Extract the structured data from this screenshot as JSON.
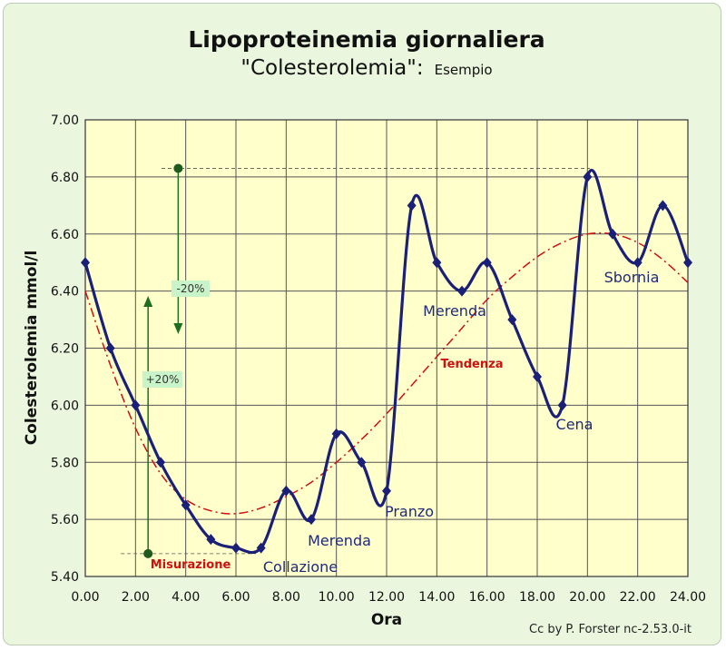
{
  "chart_data": {
    "type": "line",
    "title": "Lipoproteinemia giornaliera",
    "subtitle_main": "\"Colesterolemia\":",
    "subtitle_small": "Esempio",
    "xlabel": "Ora",
    "ylabel": "Colesterolemia mmol/l",
    "xlim": [
      0,
      24
    ],
    "ylim": [
      5.4,
      7.0
    ],
    "x_ticks": [
      "0.00",
      "2.00",
      "4.00",
      "6.00",
      "8.00",
      "10.00",
      "12.00",
      "14.00",
      "16.00",
      "18.00",
      "20.00",
      "22.00",
      "24.00"
    ],
    "y_ticks": [
      "5.40",
      "5.60",
      "5.80",
      "6.00",
      "6.20",
      "6.40",
      "6.60",
      "6.80",
      "7.00"
    ],
    "grid": true,
    "series": [
      {
        "color": "#1a1f78",
        "x": [
          0,
          1,
          2,
          3,
          4,
          5,
          6,
          7,
          8,
          9,
          10,
          11,
          12,
          13,
          14,
          15,
          16,
          17,
          18,
          19,
          20,
          21,
          22,
          23,
          24
        ],
        "y": [
          6.5,
          6.2,
          6.0,
          5.8,
          5.65,
          5.53,
          5.5,
          5.5,
          5.7,
          5.6,
          5.9,
          5.8,
          5.7,
          6.7,
          6.5,
          6.4,
          6.5,
          6.3,
          6.1,
          6.0,
          6.8,
          6.6,
          6.5,
          6.7,
          6.5
        ]
      },
      {
        "color": "#cc1111",
        "style": "dash-dot",
        "x": [
          0,
          1,
          2,
          3,
          4,
          5,
          6,
          7,
          8,
          9,
          10,
          11,
          12,
          13,
          14,
          15,
          16,
          17,
          18,
          19,
          20,
          21,
          22,
          23,
          24
        ],
        "y": [
          6.4,
          6.14,
          5.92,
          5.76,
          5.67,
          5.63,
          5.62,
          5.64,
          5.68,
          5.73,
          5.8,
          5.88,
          5.97,
          6.07,
          6.17,
          6.27,
          6.37,
          6.45,
          6.52,
          6.57,
          6.6,
          6.6,
          6.57,
          6.51,
          6.43
        ]
      }
    ],
    "annotations": [
      {
        "text": "Collazione",
        "x": 7,
        "y": 5.5
      },
      {
        "text": "Merenda",
        "x": 9,
        "y": 5.6
      },
      {
        "text": "Pranzo",
        "x": 12,
        "y": 5.7
      },
      {
        "text": "Merenda",
        "x": 15,
        "y": 6.4
      },
      {
        "text": "Cena",
        "x": 19,
        "y": 6.0
      },
      {
        "text": "Sbornia",
        "x": 21.5,
        "y": 6.55
      }
    ],
    "trend_label": "Tendenza",
    "measurement_label": "Misurazione",
    "measurement_point": {
      "x": 2.5,
      "y": 5.48
    },
    "upper_point": {
      "x": 3.7,
      "y": 6.83
    },
    "minus_label": "-20%",
    "plus_label": "+20%"
  },
  "credit": "Cc by P. Forster nc-2.53.0-it",
  "colors": {
    "background": "#eaf6de",
    "plot_background": "#ffffcc",
    "grid": "#555555",
    "series_main": "#1a1f78",
    "trend": "#cc1111",
    "annotation_text": "#1f2a7a",
    "arrow": "#1f6e1f",
    "badge": "#c9f4c9"
  }
}
